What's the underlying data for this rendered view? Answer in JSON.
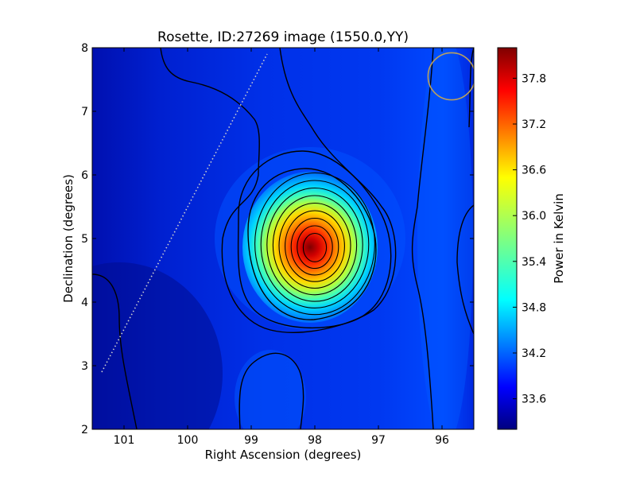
{
  "chart_data": {
    "type": "heatmap",
    "title": "Rosette, ID:27269 image (1550.0,YY)",
    "xlabel": "Right Ascension (degrees)",
    "ylabel": "Declination (degrees)",
    "colorbar_label": "Power in Kelvin",
    "xlim": [
      101.5,
      95.5
    ],
    "ylim": [
      2,
      8
    ],
    "x_ticks": [
      101,
      100,
      99,
      98,
      97,
      96
    ],
    "x_tick_labels": [
      "101",
      "100",
      "99",
      "98",
      "97",
      "96"
    ],
    "y_ticks": [
      2,
      3,
      4,
      5,
      6,
      7,
      8
    ],
    "y_tick_labels": [
      "2",
      "3",
      "4",
      "5",
      "6",
      "7",
      "8"
    ],
    "color_range": [
      33.2,
      38.2
    ],
    "colorbar_ticks": [
      33.6,
      34.2,
      34.8,
      35.4,
      36.0,
      36.6,
      37.2,
      37.8
    ],
    "colorbar_tick_labels": [
      "33.6",
      "34.2",
      "34.8",
      "35.4",
      "36.0",
      "36.6",
      "37.2",
      "37.8"
    ],
    "colormap": "jet",
    "peak": {
      "ra": 98.0,
      "dec": 4.85,
      "value": 38.1
    },
    "background_level": 33.9,
    "dotted_line": {
      "start": [
        101.35,
        2.9
      ],
      "end": [
        98.75,
        7.9
      ],
      "color": "#cfcfcf"
    },
    "beam_circle": {
      "center": [
        95.85,
        7.55
      ],
      "radius_deg": 0.37,
      "color": "#b8a060"
    },
    "contour_color": "#000000"
  }
}
